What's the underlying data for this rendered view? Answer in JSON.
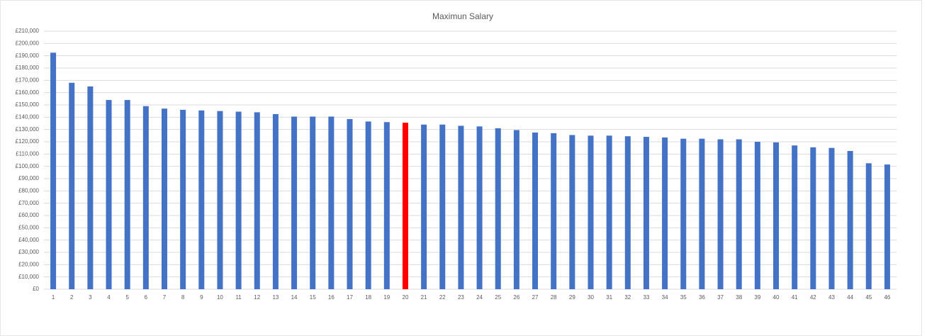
{
  "chart_data": {
    "type": "bar",
    "title": "Maximun Salary",
    "categories": [
      "1",
      "2",
      "3",
      "4",
      "5",
      "6",
      "7",
      "8",
      "9",
      "10",
      "11",
      "12",
      "13",
      "14",
      "15",
      "16",
      "17",
      "18",
      "19",
      "20",
      "21",
      "22",
      "23",
      "24",
      "25",
      "26",
      "27",
      "28",
      "29",
      "30",
      "31",
      "32",
      "33",
      "34",
      "35",
      "36",
      "37",
      "38",
      "39",
      "40",
      "41",
      "42",
      "43",
      "44",
      "45",
      "46"
    ],
    "values": [
      192500,
      168000,
      165000,
      154000,
      154000,
      149000,
      147000,
      146000,
      145500,
      145000,
      144500,
      144000,
      142500,
      140500,
      140500,
      140500,
      138500,
      136500,
      136000,
      135500,
      134000,
      134000,
      133000,
      132500,
      131000,
      129500,
      127500,
      127000,
      125500,
      125000,
      125000,
      124500,
      124000,
      123500,
      122500,
      122500,
      122000,
      122000,
      120000,
      119500,
      117000,
      115500,
      115000,
      112500,
      102500,
      101500
    ],
    "colors": [
      "#4472c4",
      "#4472c4",
      "#4472c4",
      "#4472c4",
      "#4472c4",
      "#4472c4",
      "#4472c4",
      "#4472c4",
      "#4472c4",
      "#4472c4",
      "#4472c4",
      "#4472c4",
      "#4472c4",
      "#4472c4",
      "#4472c4",
      "#4472c4",
      "#4472c4",
      "#4472c4",
      "#4472c4",
      "#ff0000",
      "#4472c4",
      "#4472c4",
      "#4472c4",
      "#4472c4",
      "#4472c4",
      "#4472c4",
      "#4472c4",
      "#4472c4",
      "#4472c4",
      "#4472c4",
      "#4472c4",
      "#4472c4",
      "#4472c4",
      "#4472c4",
      "#4472c4",
      "#4472c4",
      "#4472c4",
      "#4472c4",
      "#4472c4",
      "#4472c4",
      "#4472c4",
      "#4472c4",
      "#4472c4",
      "#4472c4",
      "#4472c4",
      "#4472c4"
    ],
    "ylim": [
      0,
      210000
    ],
    "yticks": [
      {
        "value": 0,
        "label": "£0"
      },
      {
        "value": 10000,
        "label": "£10,000"
      },
      {
        "value": 20000,
        "label": "£20,000"
      },
      {
        "value": 30000,
        "label": "£30,000"
      },
      {
        "value": 40000,
        "label": "£40,000"
      },
      {
        "value": 50000,
        "label": "£50,000"
      },
      {
        "value": 60000,
        "label": "£60,000"
      },
      {
        "value": 70000,
        "label": "£70,000"
      },
      {
        "value": 80000,
        "label": "£80,000"
      },
      {
        "value": 90000,
        "label": "£90,000"
      },
      {
        "value": 100000,
        "label": "£100,000"
      },
      {
        "value": 110000,
        "label": "£110,000"
      },
      {
        "value": 120000,
        "label": "£120,000"
      },
      {
        "value": 130000,
        "label": "£130,000"
      },
      {
        "value": 140000,
        "label": "£140,000"
      },
      {
        "value": 150000,
        "label": "£150,000"
      },
      {
        "value": 160000,
        "label": "£160,000"
      },
      {
        "value": 170000,
        "label": "£170,000"
      },
      {
        "value": 180000,
        "label": "£180,000"
      },
      {
        "value": 190000,
        "label": "£190,000"
      },
      {
        "value": 200000,
        "label": "£200,000"
      },
      {
        "value": 210000,
        "label": "£210,000"
      }
    ],
    "grid": true
  }
}
